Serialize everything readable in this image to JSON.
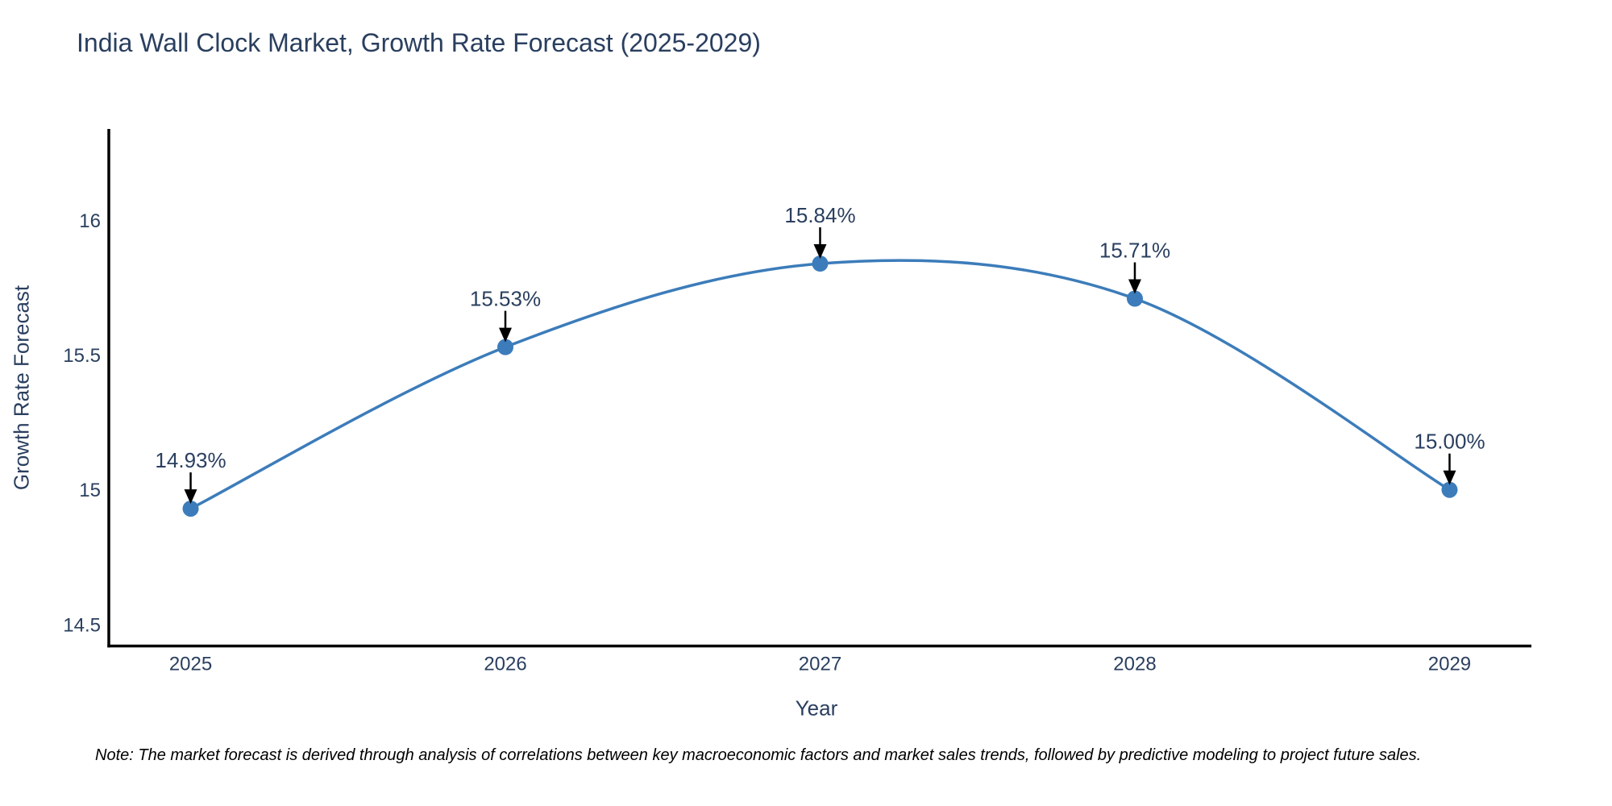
{
  "title": "India Wall Clock Market, Growth Rate Forecast (2025-2029)",
  "footnote": "Note: The market forecast is derived through analysis of correlations between key macroeconomic factors and market sales trends, followed by predictive modeling to project future sales.",
  "chart_data": {
    "type": "line",
    "title": "India Wall Clock Market, Growth Rate Forecast (2025-2029)",
    "xlabel": "Year",
    "ylabel": "Growth Rate Forecast",
    "x": [
      2025,
      2026,
      2027,
      2028,
      2029
    ],
    "series": [
      {
        "name": "Growth Rate Forecast",
        "values": [
          14.93,
          15.53,
          15.84,
          15.71,
          15.0
        ]
      }
    ],
    "point_labels": [
      "14.93%",
      "15.53%",
      "15.84%",
      "15.71%",
      "15.00%"
    ],
    "x_tick_labels": [
      "2025",
      "2026",
      "2027",
      "2028",
      "2029"
    ],
    "y_tick_values": [
      16,
      15.5,
      15,
      14.5
    ],
    "y_tick_labels": [
      "16",
      "15.5",
      "15",
      "14.5"
    ],
    "xlim": [
      2024.74,
      2029.26
    ],
    "ylim": [
      14.42,
      16.34
    ],
    "grid": false,
    "legend": "none",
    "line_shape": "spline",
    "colors": {
      "line": "#3c7cba",
      "marker": "#3c7cba",
      "axis": "#000000",
      "text": "#2a3f5f",
      "annotation_arrow": "#000000",
      "background": "#ffffff"
    }
  }
}
